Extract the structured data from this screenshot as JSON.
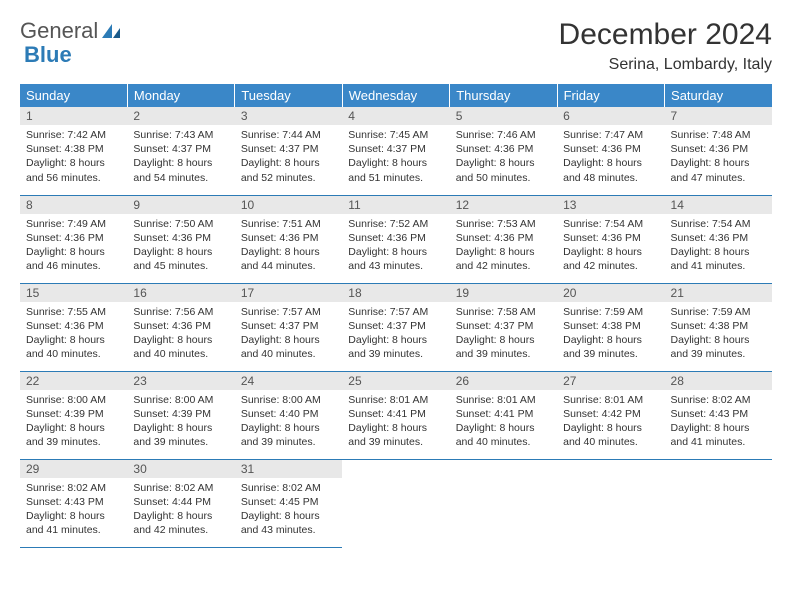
{
  "logo": {
    "word1": "General",
    "word2": "Blue"
  },
  "title": "December 2024",
  "location": "Serina, Lombardy, Italy",
  "colors": {
    "header_bg": "#3a87c8",
    "header_text": "#ffffff",
    "daynum_bg": "#e8e8e8",
    "border": "#2c7bb6",
    "logo_gray": "#555555",
    "logo_blue": "#2c7bb6",
    "text": "#333333",
    "background": "#ffffff"
  },
  "weekdays": [
    "Sunday",
    "Monday",
    "Tuesday",
    "Wednesday",
    "Thursday",
    "Friday",
    "Saturday"
  ],
  "weeks": [
    [
      {
        "n": "1",
        "sr": "Sunrise: 7:42 AM",
        "ss": "Sunset: 4:38 PM",
        "d1": "Daylight: 8 hours",
        "d2": "and 56 minutes."
      },
      {
        "n": "2",
        "sr": "Sunrise: 7:43 AM",
        "ss": "Sunset: 4:37 PM",
        "d1": "Daylight: 8 hours",
        "d2": "and 54 minutes."
      },
      {
        "n": "3",
        "sr": "Sunrise: 7:44 AM",
        "ss": "Sunset: 4:37 PM",
        "d1": "Daylight: 8 hours",
        "d2": "and 52 minutes."
      },
      {
        "n": "4",
        "sr": "Sunrise: 7:45 AM",
        "ss": "Sunset: 4:37 PM",
        "d1": "Daylight: 8 hours",
        "d2": "and 51 minutes."
      },
      {
        "n": "5",
        "sr": "Sunrise: 7:46 AM",
        "ss": "Sunset: 4:36 PM",
        "d1": "Daylight: 8 hours",
        "d2": "and 50 minutes."
      },
      {
        "n": "6",
        "sr": "Sunrise: 7:47 AM",
        "ss": "Sunset: 4:36 PM",
        "d1": "Daylight: 8 hours",
        "d2": "and 48 minutes."
      },
      {
        "n": "7",
        "sr": "Sunrise: 7:48 AM",
        "ss": "Sunset: 4:36 PM",
        "d1": "Daylight: 8 hours",
        "d2": "and 47 minutes."
      }
    ],
    [
      {
        "n": "8",
        "sr": "Sunrise: 7:49 AM",
        "ss": "Sunset: 4:36 PM",
        "d1": "Daylight: 8 hours",
        "d2": "and 46 minutes."
      },
      {
        "n": "9",
        "sr": "Sunrise: 7:50 AM",
        "ss": "Sunset: 4:36 PM",
        "d1": "Daylight: 8 hours",
        "d2": "and 45 minutes."
      },
      {
        "n": "10",
        "sr": "Sunrise: 7:51 AM",
        "ss": "Sunset: 4:36 PM",
        "d1": "Daylight: 8 hours",
        "d2": "and 44 minutes."
      },
      {
        "n": "11",
        "sr": "Sunrise: 7:52 AM",
        "ss": "Sunset: 4:36 PM",
        "d1": "Daylight: 8 hours",
        "d2": "and 43 minutes."
      },
      {
        "n": "12",
        "sr": "Sunrise: 7:53 AM",
        "ss": "Sunset: 4:36 PM",
        "d1": "Daylight: 8 hours",
        "d2": "and 42 minutes."
      },
      {
        "n": "13",
        "sr": "Sunrise: 7:54 AM",
        "ss": "Sunset: 4:36 PM",
        "d1": "Daylight: 8 hours",
        "d2": "and 42 minutes."
      },
      {
        "n": "14",
        "sr": "Sunrise: 7:54 AM",
        "ss": "Sunset: 4:36 PM",
        "d1": "Daylight: 8 hours",
        "d2": "and 41 minutes."
      }
    ],
    [
      {
        "n": "15",
        "sr": "Sunrise: 7:55 AM",
        "ss": "Sunset: 4:36 PM",
        "d1": "Daylight: 8 hours",
        "d2": "and 40 minutes."
      },
      {
        "n": "16",
        "sr": "Sunrise: 7:56 AM",
        "ss": "Sunset: 4:36 PM",
        "d1": "Daylight: 8 hours",
        "d2": "and 40 minutes."
      },
      {
        "n": "17",
        "sr": "Sunrise: 7:57 AM",
        "ss": "Sunset: 4:37 PM",
        "d1": "Daylight: 8 hours",
        "d2": "and 40 minutes."
      },
      {
        "n": "18",
        "sr": "Sunrise: 7:57 AM",
        "ss": "Sunset: 4:37 PM",
        "d1": "Daylight: 8 hours",
        "d2": "and 39 minutes."
      },
      {
        "n": "19",
        "sr": "Sunrise: 7:58 AM",
        "ss": "Sunset: 4:37 PM",
        "d1": "Daylight: 8 hours",
        "d2": "and 39 minutes."
      },
      {
        "n": "20",
        "sr": "Sunrise: 7:59 AM",
        "ss": "Sunset: 4:38 PM",
        "d1": "Daylight: 8 hours",
        "d2": "and 39 minutes."
      },
      {
        "n": "21",
        "sr": "Sunrise: 7:59 AM",
        "ss": "Sunset: 4:38 PM",
        "d1": "Daylight: 8 hours",
        "d2": "and 39 minutes."
      }
    ],
    [
      {
        "n": "22",
        "sr": "Sunrise: 8:00 AM",
        "ss": "Sunset: 4:39 PM",
        "d1": "Daylight: 8 hours",
        "d2": "and 39 minutes."
      },
      {
        "n": "23",
        "sr": "Sunrise: 8:00 AM",
        "ss": "Sunset: 4:39 PM",
        "d1": "Daylight: 8 hours",
        "d2": "and 39 minutes."
      },
      {
        "n": "24",
        "sr": "Sunrise: 8:00 AM",
        "ss": "Sunset: 4:40 PM",
        "d1": "Daylight: 8 hours",
        "d2": "and 39 minutes."
      },
      {
        "n": "25",
        "sr": "Sunrise: 8:01 AM",
        "ss": "Sunset: 4:41 PM",
        "d1": "Daylight: 8 hours",
        "d2": "and 39 minutes."
      },
      {
        "n": "26",
        "sr": "Sunrise: 8:01 AM",
        "ss": "Sunset: 4:41 PM",
        "d1": "Daylight: 8 hours",
        "d2": "and 40 minutes."
      },
      {
        "n": "27",
        "sr": "Sunrise: 8:01 AM",
        "ss": "Sunset: 4:42 PM",
        "d1": "Daylight: 8 hours",
        "d2": "and 40 minutes."
      },
      {
        "n": "28",
        "sr": "Sunrise: 8:02 AM",
        "ss": "Sunset: 4:43 PM",
        "d1": "Daylight: 8 hours",
        "d2": "and 41 minutes."
      }
    ],
    [
      {
        "n": "29",
        "sr": "Sunrise: 8:02 AM",
        "ss": "Sunset: 4:43 PM",
        "d1": "Daylight: 8 hours",
        "d2": "and 41 minutes."
      },
      {
        "n": "30",
        "sr": "Sunrise: 8:02 AM",
        "ss": "Sunset: 4:44 PM",
        "d1": "Daylight: 8 hours",
        "d2": "and 42 minutes."
      },
      {
        "n": "31",
        "sr": "Sunrise: 8:02 AM",
        "ss": "Sunset: 4:45 PM",
        "d1": "Daylight: 8 hours",
        "d2": "and 43 minutes."
      },
      null,
      null,
      null,
      null
    ]
  ]
}
